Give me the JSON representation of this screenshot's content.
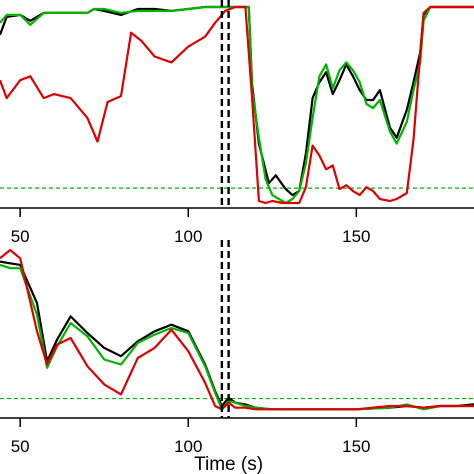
{
  "chart_data": [
    {
      "type": "line",
      "xlim": [
        44,
        185
      ],
      "ylim": [
        0,
        1
      ],
      "xticks": [
        50,
        100,
        150
      ],
      "xtick_labels": [
        "50",
        "100",
        "150"
      ],
      "xlabel": "",
      "vlines": [
        110,
        112
      ],
      "hline": 0.075,
      "series": [
        {
          "color": "#000000",
          "points": [
            [
              44,
              0.85
            ],
            [
              46,
              0.94
            ],
            [
              50,
              0.95
            ],
            [
              53,
              0.92
            ],
            [
              57,
              0.96
            ],
            [
              60,
              0.96
            ],
            [
              70,
              0.96
            ],
            [
              72,
              0.98
            ],
            [
              75,
              0.97
            ],
            [
              80,
              0.95
            ],
            [
              85,
              0.98
            ],
            [
              90,
              0.98
            ],
            [
              95,
              0.97
            ],
            [
              100,
              0.98
            ],
            [
              105,
              0.99
            ],
            [
              108,
              0.99
            ],
            [
              113,
              0.99
            ],
            [
              116,
              0.99
            ],
            [
              118,
              0.99
            ],
            [
              119,
              0.6
            ],
            [
              121,
              0.3
            ],
            [
              124,
              0.1
            ],
            [
              126,
              0.14
            ],
            [
              129,
              0.07
            ],
            [
              131,
              0.04
            ],
            [
              133,
              0.06
            ],
            [
              135,
              0.25
            ],
            [
              137,
              0.53
            ],
            [
              139,
              0.61
            ],
            [
              141,
              0.66
            ],
            [
              143,
              0.55
            ],
            [
              145,
              0.62
            ],
            [
              147,
              0.7
            ],
            [
              149,
              0.64
            ],
            [
              151,
              0.57
            ],
            [
              153,
              0.52
            ],
            [
              155,
              0.52
            ],
            [
              157,
              0.57
            ],
            [
              160,
              0.38
            ],
            [
              162,
              0.33
            ],
            [
              165,
              0.47
            ],
            [
              167,
              0.61
            ],
            [
              169,
              0.76
            ],
            [
              170,
              0.95
            ],
            [
              172,
              0.99
            ],
            [
              175,
              0.99
            ],
            [
              180,
              0.99
            ],
            [
              185,
              0.99
            ]
          ]
        },
        {
          "color": "#00b400",
          "points": [
            [
              44,
              0.91
            ],
            [
              46,
              0.95
            ],
            [
              50,
              0.95
            ],
            [
              53,
              0.9
            ],
            [
              57,
              0.96
            ],
            [
              60,
              0.96
            ],
            [
              70,
              0.96
            ],
            [
              72,
              0.98
            ],
            [
              75,
              0.98
            ],
            [
              80,
              0.96
            ],
            [
              85,
              0.97
            ],
            [
              90,
              0.97
            ],
            [
              95,
              0.97
            ],
            [
              100,
              0.98
            ],
            [
              105,
              0.99
            ],
            [
              108,
              0.99
            ],
            [
              113,
              0.99
            ],
            [
              116,
              0.99
            ],
            [
              118,
              0.99
            ],
            [
              119,
              0.57
            ],
            [
              121,
              0.33
            ],
            [
              123,
              0.12
            ],
            [
              125,
              0.04
            ],
            [
              127,
              0.02
            ],
            [
              129,
              0.0
            ],
            [
              131,
              0.02
            ],
            [
              133,
              0.06
            ],
            [
              135,
              0.2
            ],
            [
              137,
              0.43
            ],
            [
              139,
              0.64
            ],
            [
              141,
              0.7
            ],
            [
              143,
              0.58
            ],
            [
              145,
              0.67
            ],
            [
              147,
              0.71
            ],
            [
              149,
              0.67
            ],
            [
              151,
              0.61
            ],
            [
              153,
              0.5
            ],
            [
              155,
              0.48
            ],
            [
              157,
              0.52
            ],
            [
              160,
              0.36
            ],
            [
              162,
              0.3
            ],
            [
              165,
              0.41
            ],
            [
              167,
              0.57
            ],
            [
              169,
              0.71
            ],
            [
              170,
              0.92
            ],
            [
              172,
              0.99
            ],
            [
              175,
              0.99
            ],
            [
              180,
              0.99
            ],
            [
              185,
              0.99
            ]
          ]
        },
        {
          "color": "#dd0000",
          "points": [
            [
              44,
              0.62
            ],
            [
              46,
              0.53
            ],
            [
              50,
              0.62
            ],
            [
              53,
              0.64
            ],
            [
              57,
              0.53
            ],
            [
              60,
              0.55
            ],
            [
              65,
              0.53
            ],
            [
              70,
              0.43
            ],
            [
              73,
              0.31
            ],
            [
              76,
              0.51
            ],
            [
              80,
              0.54
            ],
            [
              83,
              0.86
            ],
            [
              86,
              0.82
            ],
            [
              90,
              0.74
            ],
            [
              95,
              0.71
            ],
            [
              100,
              0.79
            ],
            [
              105,
              0.84
            ],
            [
              108,
              0.91
            ],
            [
              111,
              0.97
            ],
            [
              114,
              0.99
            ],
            [
              117,
              0.99
            ],
            [
              119,
              0.53
            ],
            [
              121,
              0.01
            ],
            [
              123,
              0.0
            ],
            [
              125,
              0.01
            ],
            [
              128,
              0.0
            ],
            [
              131,
              0.0
            ],
            [
              133,
              0.0
            ],
            [
              135,
              0.08
            ],
            [
              137,
              0.29
            ],
            [
              139,
              0.24
            ],
            [
              141,
              0.17
            ],
            [
              143,
              0.19
            ],
            [
              145,
              0.07
            ],
            [
              147,
              0.09
            ],
            [
              149,
              0.06
            ],
            [
              151,
              0.04
            ],
            [
              153,
              0.08
            ],
            [
              155,
              0.06
            ],
            [
              157,
              0.02
            ],
            [
              160,
              0.01
            ],
            [
              162,
              0.02
            ],
            [
              165,
              0.05
            ],
            [
              167,
              0.32
            ],
            [
              169,
              0.75
            ],
            [
              170,
              0.96
            ],
            [
              172,
              0.99
            ],
            [
              175,
              0.99
            ],
            [
              180,
              0.99
            ],
            [
              185,
              0.99
            ]
          ]
        }
      ]
    },
    {
      "type": "line",
      "xlim": [
        44,
        185
      ],
      "ylim": [
        0,
        1
      ],
      "xticks": [
        50,
        100,
        150
      ],
      "xtick_labels": [
        "50",
        "100",
        "150"
      ],
      "xlabel": "Time (s)",
      "vlines": [
        110,
        112
      ],
      "hline": 0.075,
      "series": [
        {
          "color": "#000000",
          "points": [
            [
              44,
              0.9
            ],
            [
              47,
              0.89
            ],
            [
              50,
              0.88
            ],
            [
              55,
              0.65
            ],
            [
              58,
              0.3
            ],
            [
              61,
              0.43
            ],
            [
              65,
              0.57
            ],
            [
              70,
              0.47
            ],
            [
              75,
              0.38
            ],
            [
              80,
              0.33
            ],
            [
              85,
              0.42
            ],
            [
              90,
              0.48
            ],
            [
              95,
              0.52
            ],
            [
              100,
              0.48
            ],
            [
              105,
              0.28
            ],
            [
              108,
              0.12
            ],
            [
              110,
              0.03
            ],
            [
              112,
              0.08
            ],
            [
              114,
              0.05
            ],
            [
              117,
              0.04
            ],
            [
              120,
              0.02
            ],
            [
              125,
              0.01
            ],
            [
              130,
              0.01
            ],
            [
              140,
              0.01
            ],
            [
              150,
              0.01
            ],
            [
              160,
              0.02
            ],
            [
              165,
              0.03
            ],
            [
              170,
              0.02
            ],
            [
              175,
              0.03
            ],
            [
              180,
              0.03
            ],
            [
              185,
              0.04
            ]
          ]
        },
        {
          "color": "#00b400",
          "points": [
            [
              44,
              0.88
            ],
            [
              47,
              0.86
            ],
            [
              50,
              0.86
            ],
            [
              55,
              0.58
            ],
            [
              58,
              0.26
            ],
            [
              61,
              0.39
            ],
            [
              65,
              0.53
            ],
            [
              70,
              0.45
            ],
            [
              75,
              0.31
            ],
            [
              80,
              0.28
            ],
            [
              85,
              0.41
            ],
            [
              90,
              0.46
            ],
            [
              95,
              0.5
            ],
            [
              100,
              0.47
            ],
            [
              105,
              0.27
            ],
            [
              108,
              0.11
            ],
            [
              110,
              0.01
            ],
            [
              112,
              0.06
            ],
            [
              114,
              0.05
            ],
            [
              117,
              0.03
            ],
            [
              120,
              0.02
            ],
            [
              125,
              0.01
            ],
            [
              130,
              0.01
            ],
            [
              140,
              0.01
            ],
            [
              150,
              0.01
            ],
            [
              160,
              0.02
            ],
            [
              165,
              0.04
            ],
            [
              170,
              0.01
            ],
            [
              175,
              0.03
            ],
            [
              180,
              0.03
            ],
            [
              185,
              0.03
            ]
          ]
        },
        {
          "color": "#dd0000",
          "points": [
            [
              44,
              0.92
            ],
            [
              47,
              0.97
            ],
            [
              50,
              0.92
            ],
            [
              55,
              0.48
            ],
            [
              58,
              0.28
            ],
            [
              61,
              0.4
            ],
            [
              65,
              0.44
            ],
            [
              70,
              0.27
            ],
            [
              75,
              0.16
            ],
            [
              80,
              0.1
            ],
            [
              85,
              0.32
            ],
            [
              90,
              0.38
            ],
            [
              95,
              0.49
            ],
            [
              100,
              0.36
            ],
            [
              105,
              0.17
            ],
            [
              108,
              0.03
            ],
            [
              110,
              0.01
            ],
            [
              112,
              0.05
            ],
            [
              114,
              0.02
            ],
            [
              117,
              0.02
            ],
            [
              120,
              0.01
            ],
            [
              125,
              0.01
            ],
            [
              130,
              0.01
            ],
            [
              140,
              0.01
            ],
            [
              150,
              0.01
            ],
            [
              160,
              0.03
            ],
            [
              165,
              0.03
            ],
            [
              170,
              0.02
            ],
            [
              175,
              0.03
            ],
            [
              180,
              0.03
            ],
            [
              185,
              0.03
            ]
          ]
        }
      ]
    }
  ]
}
